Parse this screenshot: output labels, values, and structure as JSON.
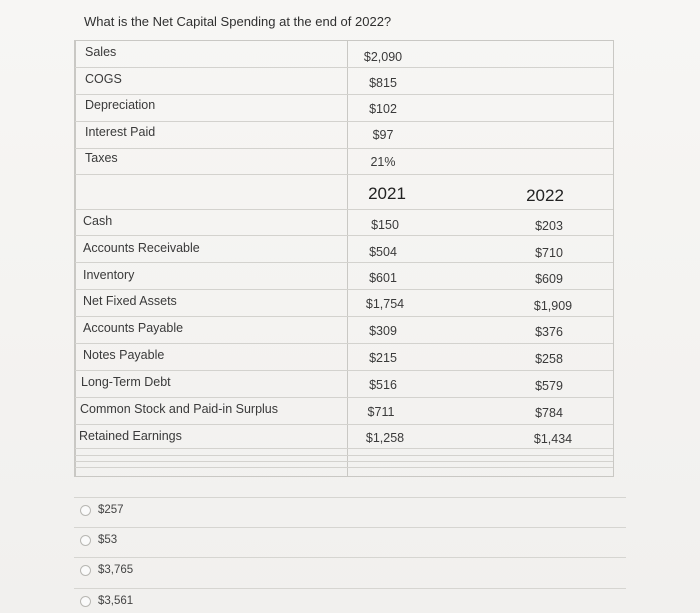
{
  "question": "What is the Net Capital Spending at the end of 2022?",
  "income": [
    {
      "label": "Sales",
      "value": "$2,090"
    },
    {
      "label": "COGS",
      "value": "$815"
    },
    {
      "label": "Depreciation",
      "value": "$102"
    },
    {
      "label": "Interest Paid",
      "value": "$97"
    },
    {
      "label": "Taxes",
      "value": "21%"
    }
  ],
  "years": {
    "y1": "2021",
    "y2": "2022"
  },
  "balance": [
    {
      "label": "Cash",
      "v2021": "$150",
      "v2022": "$203"
    },
    {
      "label": "Accounts Receivable",
      "v2021": "$504",
      "v2022": "$710"
    },
    {
      "label": "Inventory",
      "v2021": "$601",
      "v2022": "$609"
    },
    {
      "label": "Net Fixed Assets",
      "v2021": "$1,754",
      "v2022": "$1,909"
    },
    {
      "label": "Accounts Payable",
      "v2021": "$309",
      "v2022": "$376"
    },
    {
      "label": "Notes Payable",
      "v2021": "$215",
      "v2022": "$258"
    },
    {
      "label": "Long-Term Debt",
      "v2021": "$516",
      "v2022": "$579"
    },
    {
      "label": "Common Stock and Paid-in Surplus",
      "v2021": "$711",
      "v2022": "$784"
    },
    {
      "label": "Retained Earnings",
      "v2021": "$1,258",
      "v2022": "$1,434"
    }
  ],
  "options": [
    "$257",
    "$53",
    "$3,765",
    "$3,561"
  ]
}
